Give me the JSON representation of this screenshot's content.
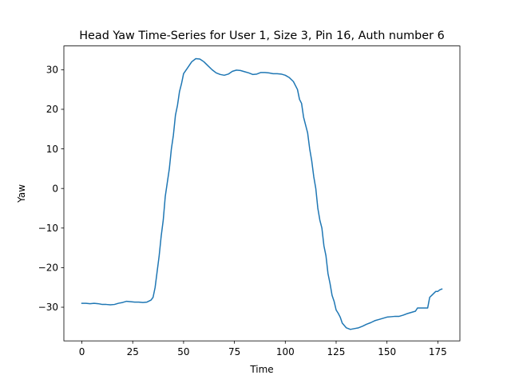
{
  "chart_data": {
    "type": "line",
    "title": "Head Yaw Time-Series for User 1, Size 3, Pin 16, Auth number 6",
    "xlabel": "Time",
    "ylabel": "Yaw",
    "xlim": [
      -8.85,
      185.85
    ],
    "ylim": [
      -38.5,
      36.0
    ],
    "xticks": [
      0,
      25,
      50,
      75,
      100,
      125,
      150,
      175
    ],
    "yticks": [
      -30,
      -20,
      -10,
      0,
      10,
      20,
      30
    ],
    "grid": false,
    "series_color": "#1f77b4",
    "series": [
      {
        "name": "Yaw",
        "points": [
          [
            0,
            -29.0
          ],
          [
            2,
            -29.0
          ],
          [
            4,
            -29.1
          ],
          [
            6,
            -29.0
          ],
          [
            8,
            -29.1
          ],
          [
            10,
            -29.3
          ],
          [
            12,
            -29.3
          ],
          [
            14,
            -29.4
          ],
          [
            16,
            -29.3
          ],
          [
            18,
            -29.0
          ],
          [
            20,
            -28.8
          ],
          [
            22,
            -28.5
          ],
          [
            24,
            -28.6
          ],
          [
            26,
            -28.7
          ],
          [
            28,
            -28.7
          ],
          [
            30,
            -28.8
          ],
          [
            32,
            -28.7
          ],
          [
            34,
            -28.2
          ],
          [
            35,
            -27.5
          ],
          [
            36,
            -25.0
          ],
          [
            37,
            -21.0
          ],
          [
            38,
            -17.0
          ],
          [
            39,
            -12.0
          ],
          [
            40,
            -8.0
          ],
          [
            41,
            -2.0
          ],
          [
            42,
            1.5
          ],
          [
            43,
            5.0
          ],
          [
            44,
            10.0
          ],
          [
            45,
            13.5
          ],
          [
            46,
            18.5
          ],
          [
            47,
            21.0
          ],
          [
            48,
            24.5
          ],
          [
            49,
            26.5
          ],
          [
            50,
            29.0
          ],
          [
            52,
            30.5
          ],
          [
            54,
            32.0
          ],
          [
            56,
            32.8
          ],
          [
            58,
            32.7
          ],
          [
            60,
            32.0
          ],
          [
            62,
            31.0
          ],
          [
            64,
            30.0
          ],
          [
            66,
            29.2
          ],
          [
            68,
            28.8
          ],
          [
            70,
            28.6
          ],
          [
            72,
            28.9
          ],
          [
            74,
            29.6
          ],
          [
            76,
            29.9
          ],
          [
            78,
            29.8
          ],
          [
            80,
            29.5
          ],
          [
            82,
            29.2
          ],
          [
            84,
            28.8
          ],
          [
            86,
            28.9
          ],
          [
            88,
            29.3
          ],
          [
            90,
            29.3
          ],
          [
            92,
            29.2
          ],
          [
            94,
            29.0
          ],
          [
            96,
            29.0
          ],
          [
            98,
            28.9
          ],
          [
            100,
            28.6
          ],
          [
            102,
            28.0
          ],
          [
            104,
            27.0
          ],
          [
            106,
            25.0
          ],
          [
            107,
            22.5
          ],
          [
            108,
            21.5
          ],
          [
            109,
            18.0
          ],
          [
            110,
            16.0
          ],
          [
            111,
            14.0
          ],
          [
            112,
            10.0
          ],
          [
            113,
            7.0
          ],
          [
            114,
            3.0
          ],
          [
            115,
            0.0
          ],
          [
            116,
            -5.0
          ],
          [
            117,
            -8.0
          ],
          [
            118,
            -10.0
          ],
          [
            119,
            -14.5
          ],
          [
            120,
            -17.0
          ],
          [
            121,
            -21.5
          ],
          [
            122,
            -24.0
          ],
          [
            123,
            -27.0
          ],
          [
            124,
            -28.5
          ],
          [
            125,
            -30.7
          ],
          [
            126,
            -31.5
          ],
          [
            127,
            -32.5
          ],
          [
            128,
            -34.0
          ],
          [
            130,
            -35.2
          ],
          [
            132,
            -35.6
          ],
          [
            134,
            -35.4
          ],
          [
            136,
            -35.2
          ],
          [
            138,
            -34.8
          ],
          [
            140,
            -34.3
          ],
          [
            142,
            -33.9
          ],
          [
            144,
            -33.4
          ],
          [
            146,
            -33.1
          ],
          [
            148,
            -32.8
          ],
          [
            150,
            -32.5
          ],
          [
            152,
            -32.4
          ],
          [
            154,
            -32.3
          ],
          [
            156,
            -32.3
          ],
          [
            158,
            -32.0
          ],
          [
            160,
            -31.6
          ],
          [
            162,
            -31.3
          ],
          [
            164,
            -31.0
          ],
          [
            165,
            -30.2
          ],
          [
            166,
            -30.2
          ],
          [
            168,
            -30.2
          ],
          [
            170,
            -30.2
          ],
          [
            171,
            -27.5
          ],
          [
            172,
            -27.0
          ],
          [
            173,
            -26.5
          ],
          [
            174,
            -26.0
          ],
          [
            175,
            -26.0
          ],
          [
            176,
            -25.6
          ],
          [
            177,
            -25.4
          ]
        ]
      }
    ]
  }
}
